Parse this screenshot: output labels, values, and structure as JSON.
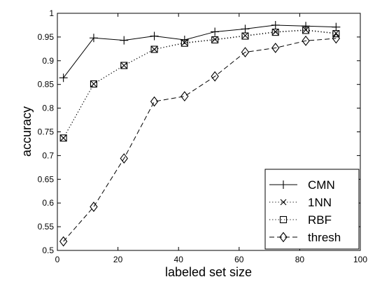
{
  "chart_data": {
    "type": "line",
    "title": "",
    "xlabel": "labeled set size",
    "ylabel": "accuracy",
    "xlim": [
      0,
      100
    ],
    "ylim": [
      0.5,
      1
    ],
    "xticks": [
      0,
      20,
      40,
      60,
      80,
      100
    ],
    "yticks": [
      0.5,
      0.55,
      0.6,
      0.65,
      0.7,
      0.75,
      0.8,
      0.85,
      0.9,
      0.95,
      1
    ],
    "xtick_labels": [
      "0",
      "20",
      "40",
      "60",
      "80",
      "100"
    ],
    "ytick_labels": [
      "0.5",
      "0.55",
      "0.6",
      "0.65",
      "0.7",
      "0.75",
      "0.8",
      "0.85",
      "0.9",
      "0.95",
      "1"
    ],
    "grid": false,
    "legend_position": "bottom-right",
    "x": [
      2,
      12,
      22,
      32,
      42,
      52,
      62,
      72,
      82,
      92
    ],
    "series": [
      {
        "name": "CMN",
        "line": "solid",
        "marker": "plus",
        "values": [
          0.864,
          0.948,
          0.943,
          0.952,
          0.944,
          0.961,
          0.967,
          0.975,
          0.973,
          0.971
        ]
      },
      {
        "name": "1NN",
        "line": "dotted",
        "marker": "x",
        "values": [
          0.737,
          0.851,
          0.89,
          0.924,
          0.938,
          0.945,
          0.953,
          0.961,
          0.965,
          0.958
        ]
      },
      {
        "name": "RBF",
        "line": "dotted",
        "marker": "square",
        "values": [
          0.737,
          0.851,
          0.89,
          0.924,
          0.937,
          0.944,
          0.952,
          0.96,
          0.964,
          0.957
        ]
      },
      {
        "name": "thresh",
        "line": "dashed",
        "marker": "diamond",
        "values": [
          0.519,
          0.592,
          0.694,
          0.814,
          0.825,
          0.867,
          0.918,
          0.927,
          0.942,
          0.947
        ]
      }
    ]
  }
}
